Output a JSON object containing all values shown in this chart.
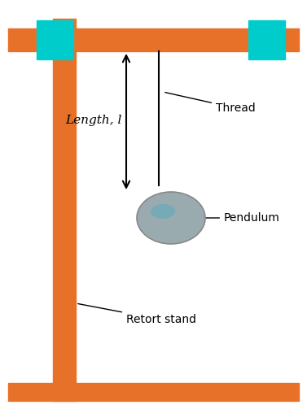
{
  "bg_color": "#ffffff",
  "stand_color": "#E8712A",
  "clamp_color": "#00CCCC",
  "pendulum_color": "#9AABB0",
  "pendulum_edge": "#888888",
  "thread_color": "#000000",
  "text_color": "#000000",
  "fig_width": 3.77,
  "fig_height": 5.03,
  "labels": {
    "thread": "Thread",
    "pendulum": "Pendulum",
    "retort_stand": "Retort stand",
    "length": "Length, l"
  },
  "xlim": [
    0,
    377
  ],
  "ylim": [
    0,
    503
  ]
}
